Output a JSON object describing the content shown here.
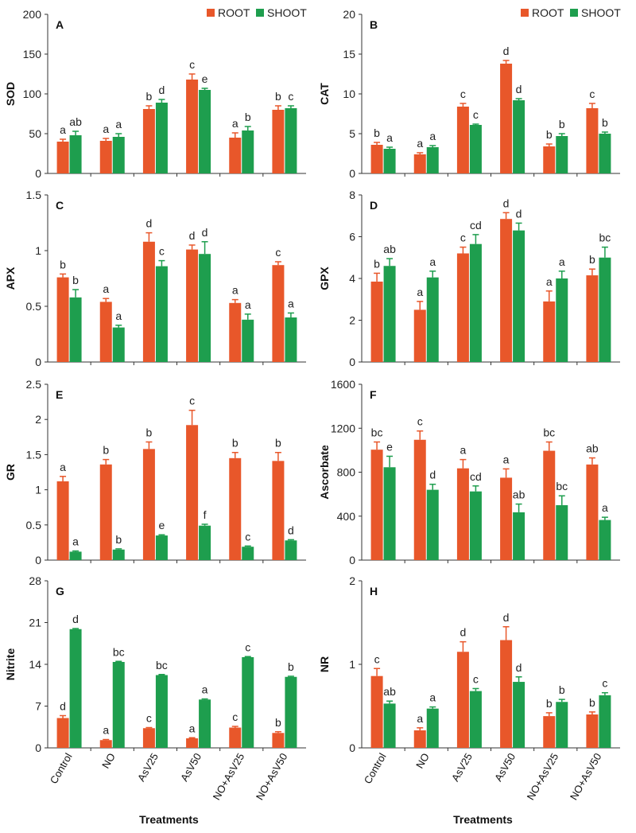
{
  "colors": {
    "root": "#E8572A",
    "shoot": "#1E9E4E"
  },
  "chart_data": {
    "type": "bar",
    "categories": [
      "Control",
      "NO",
      "AsV25",
      "AsV50",
      "NO+AsV25",
      "NO+AsV50"
    ],
    "xlabel": "Treatments",
    "legend": [
      "ROOT",
      "SHOOT"
    ],
    "panels": [
      {
        "label": "A",
        "ylabel": "SOD",
        "ylim": [
          0,
          200
        ],
        "yticks": [
          0,
          50,
          100,
          150,
          200
        ],
        "series": [
          {
            "name": "ROOT",
            "values": [
              40,
              41,
              81,
              118,
              45,
              80
            ],
            "errors": [
              3,
              3,
              4,
              7,
              6,
              5
            ],
            "letters": [
              "a",
              "a",
              "b",
              "c",
              "a",
              "b"
            ]
          },
          {
            "name": "SHOOT",
            "values": [
              48,
              46,
              89,
              105,
              54,
              82
            ],
            "errors": [
              5,
              4,
              4,
              2,
              5,
              3
            ],
            "letters": [
              "ab",
              "a",
              "d",
              "e",
              "b",
              "c"
            ]
          }
        ]
      },
      {
        "label": "B",
        "ylabel": "CAT",
        "ylim": [
          0,
          20
        ],
        "yticks": [
          0,
          5,
          10,
          15,
          20
        ],
        "series": [
          {
            "name": "ROOT",
            "values": [
              3.6,
              2.4,
              8.4,
              13.8,
              3.4,
              8.2
            ],
            "errors": [
              0.3,
              0.2,
              0.4,
              0.4,
              0.3,
              0.6
            ],
            "letters": [
              "b",
              "a",
              "c",
              "d",
              "b",
              "c"
            ]
          },
          {
            "name": "SHOOT",
            "values": [
              3.1,
              3.3,
              6.1,
              9.2,
              4.7,
              5.0
            ],
            "errors": [
              0.2,
              0.2,
              0.1,
              0.2,
              0.3,
              0.2
            ],
            "letters": [
              "a",
              "a",
              "c",
              "d",
              "b",
              "b"
            ]
          }
        ]
      },
      {
        "label": "C",
        "ylabel": "APX",
        "ylim": [
          0,
          1.5
        ],
        "yticks": [
          0,
          0.5,
          1,
          1.5
        ],
        "series": [
          {
            "name": "ROOT",
            "values": [
              0.76,
              0.54,
              1.08,
              1.01,
              0.53,
              0.87
            ],
            "errors": [
              0.03,
              0.03,
              0.08,
              0.04,
              0.03,
              0.03
            ],
            "letters": [
              "b",
              "a",
              "d",
              "d",
              "a",
              "c"
            ]
          },
          {
            "name": "SHOOT",
            "values": [
              0.58,
              0.31,
              0.86,
              0.97,
              0.38,
              0.4
            ],
            "errors": [
              0.07,
              0.02,
              0.05,
              0.11,
              0.05,
              0.04
            ],
            "letters": [
              "b",
              "a",
              "c",
              "d",
              "a",
              "a"
            ]
          }
        ]
      },
      {
        "label": "D",
        "ylabel": "GPX",
        "ylim": [
          0,
          8
        ],
        "yticks": [
          0,
          2,
          4,
          6,
          8
        ],
        "series": [
          {
            "name": "ROOT",
            "values": [
              3.85,
              2.5,
              5.2,
              6.85,
              2.9,
              4.15
            ],
            "errors": [
              0.4,
              0.4,
              0.3,
              0.3,
              0.5,
              0.3
            ],
            "letters": [
              "b",
              "a",
              "c",
              "d",
              "a",
              "b"
            ]
          },
          {
            "name": "SHOOT",
            "values": [
              4.6,
              4.05,
              5.65,
              6.3,
              4.0,
              5.0
            ],
            "errors": [
              0.35,
              0.3,
              0.45,
              0.35,
              0.35,
              0.5
            ],
            "letters": [
              "ab",
              "a",
              "cd",
              "d",
              "a",
              "bc"
            ]
          }
        ]
      },
      {
        "label": "E",
        "ylabel": "GR",
        "ylim": [
          0,
          2.5
        ],
        "yticks": [
          0,
          0.5,
          1,
          1.5,
          2,
          2.5
        ],
        "series": [
          {
            "name": "ROOT",
            "values": [
              1.12,
              1.36,
              1.58,
              1.92,
              1.45,
              1.41
            ],
            "errors": [
              0.07,
              0.07,
              0.1,
              0.21,
              0.08,
              0.12
            ],
            "letters": [
              "a",
              "b",
              "b",
              "c",
              "b",
              "b"
            ]
          },
          {
            "name": "SHOOT",
            "values": [
              0.12,
              0.15,
              0.35,
              0.49,
              0.19,
              0.28
            ],
            "errors": [
              0.01,
              0.01,
              0.01,
              0.02,
              0.01,
              0.01
            ],
            "letters": [
              "a",
              "b",
              "e",
              "f",
              "c",
              "d"
            ]
          }
        ]
      },
      {
        "label": "F",
        "ylabel": "Ascorbate",
        "ylim": [
          0,
          1600
        ],
        "yticks": [
          0,
          400,
          800,
          1200,
          1600
        ],
        "series": [
          {
            "name": "ROOT",
            "values": [
              1005,
              1095,
              835,
              750,
              995,
              870
            ],
            "errors": [
              70,
              80,
              80,
              80,
              80,
              60
            ],
            "letters": [
              "bc",
              "c",
              "a",
              "a",
              "bc",
              "ab"
            ]
          },
          {
            "name": "SHOOT",
            "values": [
              845,
              640,
              625,
              435,
              500,
              365
            ],
            "errors": [
              100,
              50,
              50,
              75,
              85,
              25
            ],
            "letters": [
              "e",
              "d",
              "cd",
              "ab",
              "bc",
              "a"
            ]
          }
        ]
      },
      {
        "label": "G",
        "ylabel": "Nitrite",
        "ylim": [
          0,
          28
        ],
        "yticks": [
          0,
          7,
          14,
          21,
          28
        ],
        "series": [
          {
            "name": "ROOT",
            "values": [
              5.0,
              1.3,
              3.3,
              1.6,
              3.4,
              2.5
            ],
            "errors": [
              0.4,
              0.1,
              0.1,
              0.1,
              0.2,
              0.2
            ],
            "letters": [
              "d",
              "a",
              "c",
              "a",
              "c",
              "b"
            ]
          },
          {
            "name": "SHOOT",
            "values": [
              19.9,
              14.4,
              12.2,
              8.1,
              15.2,
              11.9
            ],
            "errors": [
              0.1,
              0.1,
              0.1,
              0.1,
              0.1,
              0.1
            ],
            "letters": [
              "d",
              "bc",
              "bc",
              "a",
              "c",
              "b"
            ]
          }
        ]
      },
      {
        "label": "H",
        "ylabel": "NR",
        "ylim": [
          0,
          2
        ],
        "yticks": [
          0,
          1,
          2
        ],
        "series": [
          {
            "name": "ROOT",
            "values": [
              0.86,
              0.21,
              1.15,
              1.29,
              0.38,
              0.4
            ],
            "errors": [
              0.09,
              0.03,
              0.12,
              0.16,
              0.04,
              0.03
            ],
            "letters": [
              "c",
              "a",
              "d",
              "d",
              "b",
              "b"
            ]
          },
          {
            "name": "SHOOT",
            "values": [
              0.53,
              0.47,
              0.68,
              0.79,
              0.55,
              0.63
            ],
            "errors": [
              0.03,
              0.02,
              0.03,
              0.06,
              0.03,
              0.03
            ],
            "letters": [
              "ab",
              "a",
              "c",
              "d",
              "b",
              "c"
            ]
          }
        ]
      }
    ]
  }
}
